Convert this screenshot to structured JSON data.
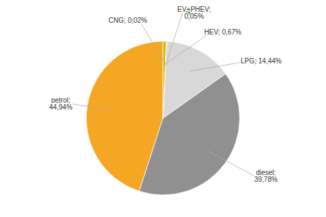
{
  "chart_data": {
    "type": "pie",
    "values": [
      44.94,
      39.78,
      14.44,
      0.02,
      0.05,
      0.67
    ],
    "value_labels": [
      "petrol;\n44,94%",
      "diesel;\n39,78%",
      "LPG; 14,44%",
      "CNG; 0,02%",
      "EV+PHEV;\n0,05%",
      "HEV; 0,67%"
    ],
    "colors": [
      "#F5A623",
      "#909090",
      "#D8D8D8",
      "#CC2222",
      "#2E8B2E",
      "#D4B800"
    ]
  }
}
